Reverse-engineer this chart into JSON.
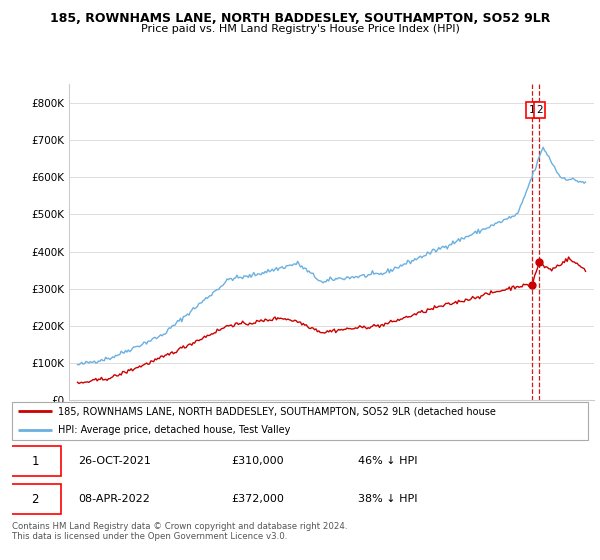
{
  "title1": "185, ROWNHAMS LANE, NORTH BADDESLEY, SOUTHAMPTON, SO52 9LR",
  "title2": "Price paid vs. HM Land Registry's House Price Index (HPI)",
  "legend_label1": "185, ROWNHAMS LANE, NORTH BADDESLEY, SOUTHAMPTON, SO52 9LR (detached house",
  "legend_label2": "HPI: Average price, detached house, Test Valley",
  "annotation1": {
    "label": "1",
    "date": "26-OCT-2021",
    "price": "£310,000",
    "pct": "46% ↓ HPI"
  },
  "annotation2": {
    "label": "2",
    "date": "08-APR-2022",
    "price": "£372,000",
    "pct": "38% ↓ HPI"
  },
  "footer": "Contains HM Land Registry data © Crown copyright and database right 2024.\nThis data is licensed under the Open Government Licence v3.0.",
  "hpi_color": "#6ab0e0",
  "price_color": "#cc0000",
  "dashed_color": "#cc0000",
  "ylim": [
    0,
    850000
  ],
  "yticks": [
    0,
    100000,
    200000,
    300000,
    400000,
    500000,
    600000,
    700000,
    800000
  ],
  "bg_color": "#f5f5f5"
}
